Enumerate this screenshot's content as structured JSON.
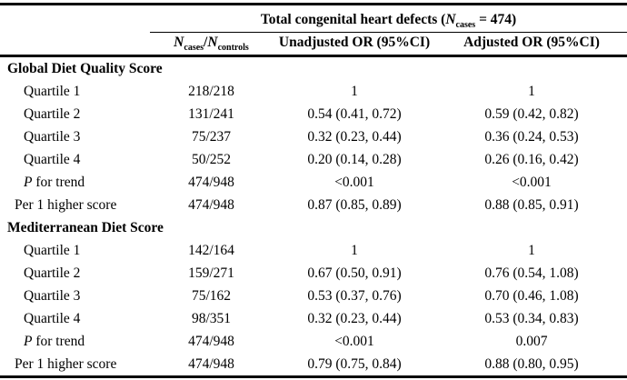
{
  "table": {
    "colors": {
      "text": "#000000",
      "background": "#ffffff",
      "rule": "#000000"
    },
    "spanning_header": {
      "pre": "Total congenital heart defects (",
      "n_symbol": "N",
      "n_subscript": "cases",
      "post": " = 474)"
    },
    "column_headers": {
      "n_col": {
        "base1": "N",
        "sub1": "cases",
        "separator": "/",
        "base2": "N",
        "sub2": "controls"
      },
      "unadjusted": "Unadjusted OR (95%CI)",
      "adjusted": "Adjusted OR (95%CI)"
    },
    "sections": [
      {
        "heading": "Global Diet Quality Score",
        "rows": [
          {
            "label": "Quartile 1",
            "indent": 2,
            "n_cases_controls": "218/218",
            "unadjusted_or": "1",
            "adjusted_or": "1"
          },
          {
            "label": "Quartile 2",
            "indent": 2,
            "n_cases_controls": "131/241",
            "unadjusted_or": "0.54 (0.41, 0.72)",
            "adjusted_or": "0.59 (0.42, 0.82)"
          },
          {
            "label": "Quartile 3",
            "indent": 2,
            "n_cases_controls": "75/237",
            "unadjusted_or": "0.32 (0.23, 0.44)",
            "adjusted_or": "0.36 (0.24, 0.53)"
          },
          {
            "label": "Quartile 4",
            "indent": 2,
            "n_cases_controls": "50/252",
            "unadjusted_or": "0.20 (0.14, 0.28)",
            "adjusted_or": "0.26 (0.16, 0.42)"
          },
          {
            "label_parts": [
              {
                "text": "P",
                "italic": true
              },
              {
                "text": " for trend",
                "italic": false
              }
            ],
            "indent": 2,
            "n_cases_controls": "474/948",
            "unadjusted_or": "<0.001",
            "adjusted_or": "<0.001"
          },
          {
            "label": "Per 1 higher score",
            "indent": 1,
            "n_cases_controls": "474/948",
            "unadjusted_or": "0.87 (0.85, 0.89)",
            "adjusted_or": "0.88 (0.85, 0.91)"
          }
        ]
      },
      {
        "heading": "Mediterranean Diet Score",
        "rows": [
          {
            "label": "Quartile 1",
            "indent": 2,
            "n_cases_controls": "142/164",
            "unadjusted_or": "1",
            "adjusted_or": "1"
          },
          {
            "label": "Quartile 2",
            "indent": 2,
            "n_cases_controls": "159/271",
            "unadjusted_or": "0.67 (0.50, 0.91)",
            "adjusted_or": "0.76 (0.54, 1.08)"
          },
          {
            "label": "Quartile 3",
            "indent": 2,
            "n_cases_controls": "75/162",
            "unadjusted_or": "0.53 (0.37, 0.76)",
            "adjusted_or": "0.70 (0.46, 1.08)"
          },
          {
            "label": "Quartile 4",
            "indent": 2,
            "n_cases_controls": "98/351",
            "unadjusted_or": "0.32 (0.23, 0.44)",
            "adjusted_or": "0.53 (0.34, 0.83)"
          },
          {
            "label_parts": [
              {
                "text": "P",
                "italic": true
              },
              {
                "text": " for trend",
                "italic": false
              }
            ],
            "indent": 2,
            "n_cases_controls": "474/948",
            "unadjusted_or": "<0.001",
            "adjusted_or": "0.007"
          },
          {
            "label": "Per 1 higher score",
            "indent": 1,
            "n_cases_controls": "474/948",
            "unadjusted_or": "0.79 (0.75, 0.84)",
            "adjusted_or": "0.88 (0.80, 0.95)"
          }
        ]
      }
    ]
  }
}
